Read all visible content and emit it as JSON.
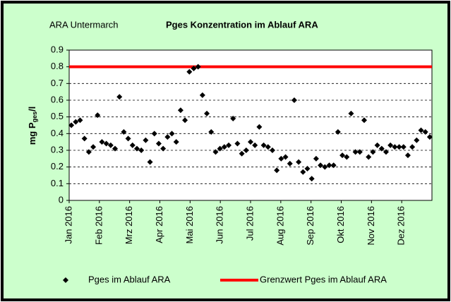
{
  "chart_data": {
    "type": "scatter",
    "title": "Pges Konzentration im Ablauf ARA",
    "annotation": "ARA Untermarch",
    "ylabel": [
      "mg P",
      "ges",
      "/l"
    ],
    "months": [
      "Jan 2016",
      "Feb 2016",
      "Mrz 2016",
      "Apr 2016",
      "Mai 2016",
      "Jun 2016",
      "Jul 2016",
      "Aug 2016",
      "Sep 2016",
      "Okt 2016",
      "Nov 2016",
      "Dez 2016"
    ],
    "ylim": [
      0,
      0.9
    ],
    "yticks": [
      0,
      0.1,
      0.2,
      0.3,
      0.4,
      0.5,
      0.6,
      0.7,
      0.8,
      0.9
    ],
    "grid": true,
    "series": [
      {
        "name": "Pges im Ablauf ARA",
        "color": "#000000",
        "values": [
          0.45,
          0.47,
          0.48,
          0.37,
          0.29,
          0.32,
          0.51,
          0.35,
          0.34,
          0.33,
          0.31,
          0.62,
          0.41,
          0.37,
          0.33,
          0.31,
          0.3,
          0.36,
          0.23,
          0.4,
          0.34,
          0.31,
          0.38,
          0.4,
          0.35,
          0.54,
          0.48,
          0.77,
          0.79,
          0.8,
          0.63,
          0.52,
          0.41,
          0.29,
          0.31,
          0.32,
          0.33,
          0.49,
          0.34,
          0.28,
          0.3,
          0.35,
          0.33,
          0.44,
          0.33,
          0.32,
          0.3,
          0.18,
          0.25,
          0.26,
          0.22,
          0.6,
          0.23,
          0.17,
          0.19,
          0.13,
          0.25,
          0.21,
          0.2,
          0.21,
          0.21,
          0.41,
          0.27,
          0.26,
          0.52,
          0.29,
          0.29,
          0.48,
          0.26,
          0.29,
          0.33,
          0.31,
          0.29,
          0.33,
          0.32,
          0.32,
          0.32,
          0.27,
          0.32,
          0.36,
          0.42,
          0.41,
          0.38
        ]
      },
      {
        "name": "Grenzwert Pges im Ablauf ARA",
        "color": "#ff0000",
        "value": 0.8
      }
    ]
  }
}
